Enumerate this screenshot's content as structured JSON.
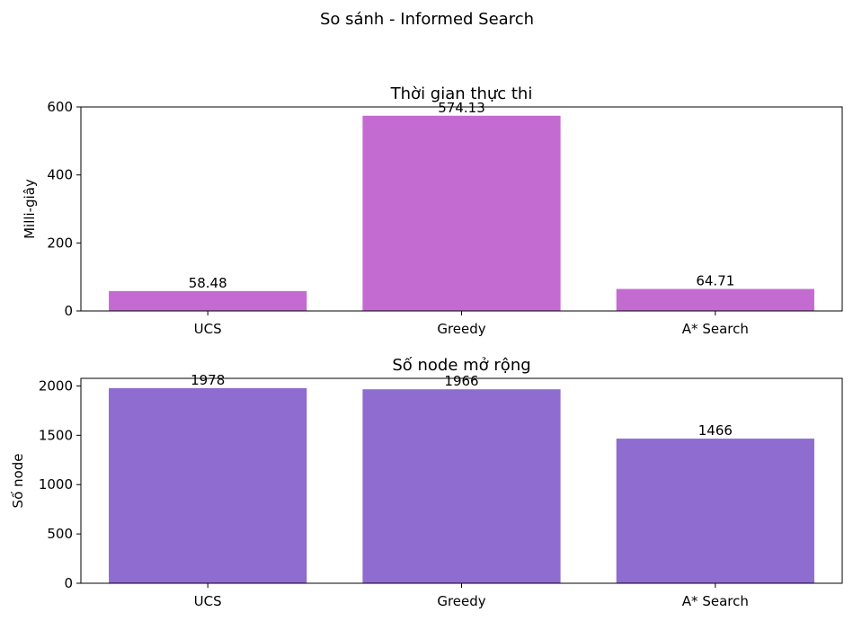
{
  "figure": {
    "suptitle": "So sánh - Informed Search"
  },
  "chart_data": [
    {
      "type": "bar",
      "title": "Thời gian thực thi",
      "xlabel": "",
      "ylabel": "Milli-giây",
      "categories": [
        "UCS",
        "Greedy",
        "A* Search"
      ],
      "values": [
        58.48,
        574.13,
        64.71
      ],
      "value_labels": [
        "58.48",
        "574.13",
        "64.71"
      ],
      "ylim": [
        0,
        600
      ],
      "yticks": [
        0,
        200,
        400,
        600
      ],
      "ytick_labels": [
        "0",
        "200",
        "400",
        "600"
      ],
      "bar_color": "#c46bd2",
      "grid": false
    },
    {
      "type": "bar",
      "title": "Số node mở rộng",
      "xlabel": "",
      "ylabel": "Số node",
      "categories": [
        "UCS",
        "Greedy",
        "A* Search"
      ],
      "values": [
        1978,
        1966,
        1466
      ],
      "value_labels": [
        "1978",
        "1966",
        "1466"
      ],
      "ylim": [
        0,
        2077
      ],
      "yticks": [
        0,
        500,
        1000,
        1500,
        2000
      ],
      "ytick_labels": [
        "0",
        "500",
        "1000",
        "1500",
        "2000"
      ],
      "bar_color": "#8e6cd0",
      "grid": false
    }
  ]
}
